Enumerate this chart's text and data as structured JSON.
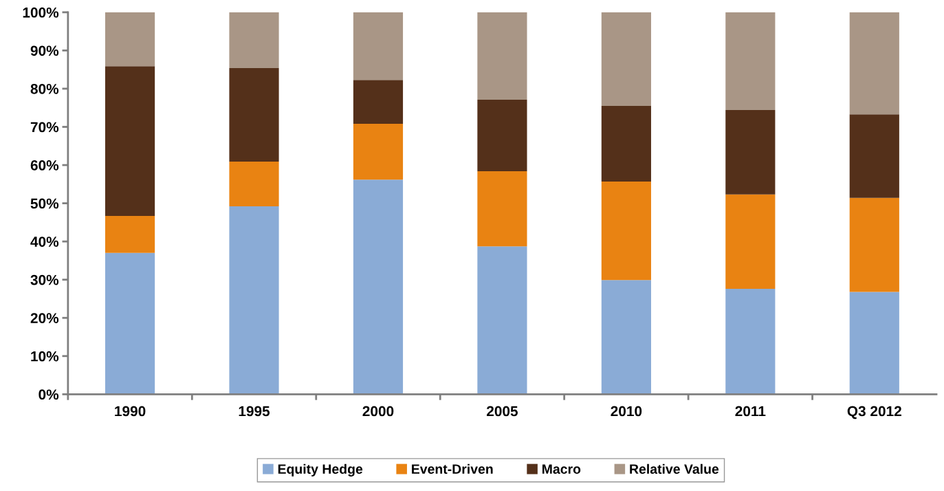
{
  "chart_data": {
    "type": "bar",
    "stacked": true,
    "categories": [
      "1990",
      "1995",
      "2000",
      "2005",
      "2010",
      "2011",
      "Q3 2012"
    ],
    "series": [
      {
        "name": "Equity Hedge",
        "color": "#8aabd6",
        "values": [
          37.0,
          49.2,
          56.2,
          38.7,
          29.9,
          27.6,
          26.8
        ]
      },
      {
        "name": "Event-Driven",
        "color": "#e98312",
        "values": [
          9.7,
          11.7,
          14.6,
          19.7,
          25.8,
          24.7,
          24.6
        ]
      },
      {
        "name": "Macro",
        "color": "#54301a",
        "values": [
          39.2,
          24.5,
          11.5,
          18.7,
          19.8,
          22.1,
          21.9
        ]
      },
      {
        "name": "Relative Value",
        "color": "#a99686",
        "values": [
          14.1,
          14.6,
          17.7,
          22.9,
          24.5,
          25.6,
          26.7
        ]
      }
    ],
    "ylim": [
      0,
      100
    ],
    "yticks": [
      {
        "value": 0,
        "label": "0%"
      },
      {
        "value": 10,
        "label": "10%"
      },
      {
        "value": 20,
        "label": "20%"
      },
      {
        "value": 30,
        "label": "30%"
      },
      {
        "value": 40,
        "label": "40%"
      },
      {
        "value": 50,
        "label": "50%"
      },
      {
        "value": 60,
        "label": "60%"
      },
      {
        "value": 70,
        "label": "70%"
      },
      {
        "value": 80,
        "label": "80%"
      },
      {
        "value": 90,
        "label": "90%"
      },
      {
        "value": 100,
        "label": "100%"
      }
    ],
    "grid": false,
    "legend": "bottom"
  }
}
